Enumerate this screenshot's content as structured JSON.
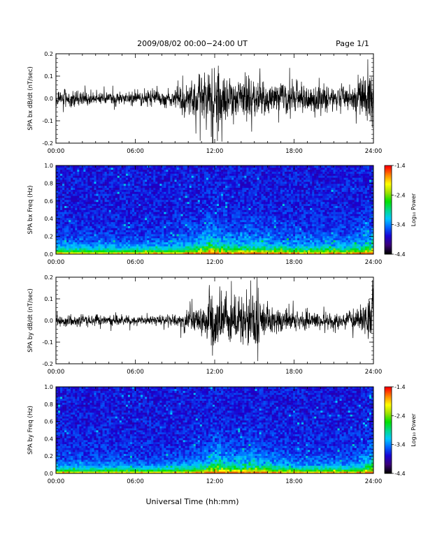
{
  "header": {
    "title": "2009/08/02  00:00−24:00 UT",
    "page": "Page 1/1"
  },
  "x_axis": {
    "label": "Universal Time (hh:mm)",
    "ticks": [
      "00:00",
      "06:00",
      "12:00",
      "18:00",
      "24:00"
    ],
    "range_hours": [
      0,
      24
    ]
  },
  "colorbar": {
    "label": "Log₁₀ Power",
    "ticks": [
      "-1.4",
      "-2.4",
      "-3.4",
      "-4.4"
    ],
    "range": [
      -4.4,
      -1.4
    ],
    "colors": [
      "#000000",
      "#3a0078",
      "#1a00d0",
      "#0060ff",
      "#00c8ff",
      "#00d888",
      "#00e000",
      "#a0e000",
      "#ffff00",
      "#ff8800",
      "#ff0000"
    ]
  },
  "chart_data": [
    {
      "type": "line",
      "ylabel": "SPA bx dB/dt (nT/sec)",
      "ylim": [
        -0.2,
        0.2
      ],
      "yticks": [
        "0.2",
        "0.1",
        "0.0",
        "-0.1",
        "-0.2"
      ],
      "xlim": [
        0,
        24
      ],
      "grid": false,
      "amplitude_envelope": {
        "hours": [
          0,
          1,
          2,
          3,
          4,
          5,
          6,
          7,
          8,
          9,
          10,
          11,
          11.5,
          12,
          12.5,
          13,
          14,
          15,
          16,
          17,
          18,
          19,
          20,
          21,
          22,
          23,
          24
        ],
        "amplitude": [
          0.05,
          0.045,
          0.04,
          0.035,
          0.035,
          0.04,
          0.04,
          0.045,
          0.05,
          0.06,
          0.08,
          0.13,
          0.2,
          0.2,
          0.15,
          0.12,
          0.12,
          0.12,
          0.1,
          0.09,
          0.08,
          0.08,
          0.08,
          0.07,
          0.07,
          0.1,
          0.2
        ]
      }
    },
    {
      "type": "heatmap",
      "ylabel": "SPA bx Freq (Hz)",
      "ylim": [
        0.0,
        1.0
      ],
      "yticks": [
        "1.0",
        "0.8",
        "0.6",
        "0.4",
        "0.2",
        "0.0"
      ],
      "xlim": [
        0,
        24
      ],
      "zlabel": "Log₁₀ Power",
      "zlim": [
        -4.4,
        -1.4
      ]
    },
    {
      "type": "line",
      "ylabel": "SPA by dB/dt (nT/sec)",
      "ylim": [
        -0.2,
        0.2
      ],
      "yticks": [
        "0.2",
        "0.1",
        "0.0",
        "-0.1",
        "-0.2"
      ],
      "xlim": [
        0,
        24
      ],
      "grid": false,
      "amplitude_envelope": {
        "hours": [
          0,
          1,
          2,
          3,
          4,
          5,
          6,
          7,
          8,
          9,
          10,
          11,
          11.5,
          12,
          12.5,
          13,
          14,
          15,
          16,
          17,
          18,
          19,
          20,
          21,
          22,
          23,
          24
        ],
        "amplitude": [
          0.04,
          0.035,
          0.03,
          0.03,
          0.035,
          0.03,
          0.025,
          0.025,
          0.03,
          0.04,
          0.06,
          0.09,
          0.14,
          0.2,
          0.18,
          0.14,
          0.14,
          0.15,
          0.1,
          0.08,
          0.06,
          0.05,
          0.05,
          0.05,
          0.05,
          0.07,
          0.2
        ]
      }
    },
    {
      "type": "heatmap",
      "ylabel": "SPA by Freq (Hz)",
      "ylim": [
        0.0,
        1.0
      ],
      "yticks": [
        "1.0",
        "0.8",
        "0.6",
        "0.4",
        "0.2",
        "0.0"
      ],
      "xlim": [
        0,
        24
      ],
      "zlabel": "Log₁₀ Power",
      "zlim": [
        -4.4,
        -1.4
      ]
    }
  ]
}
